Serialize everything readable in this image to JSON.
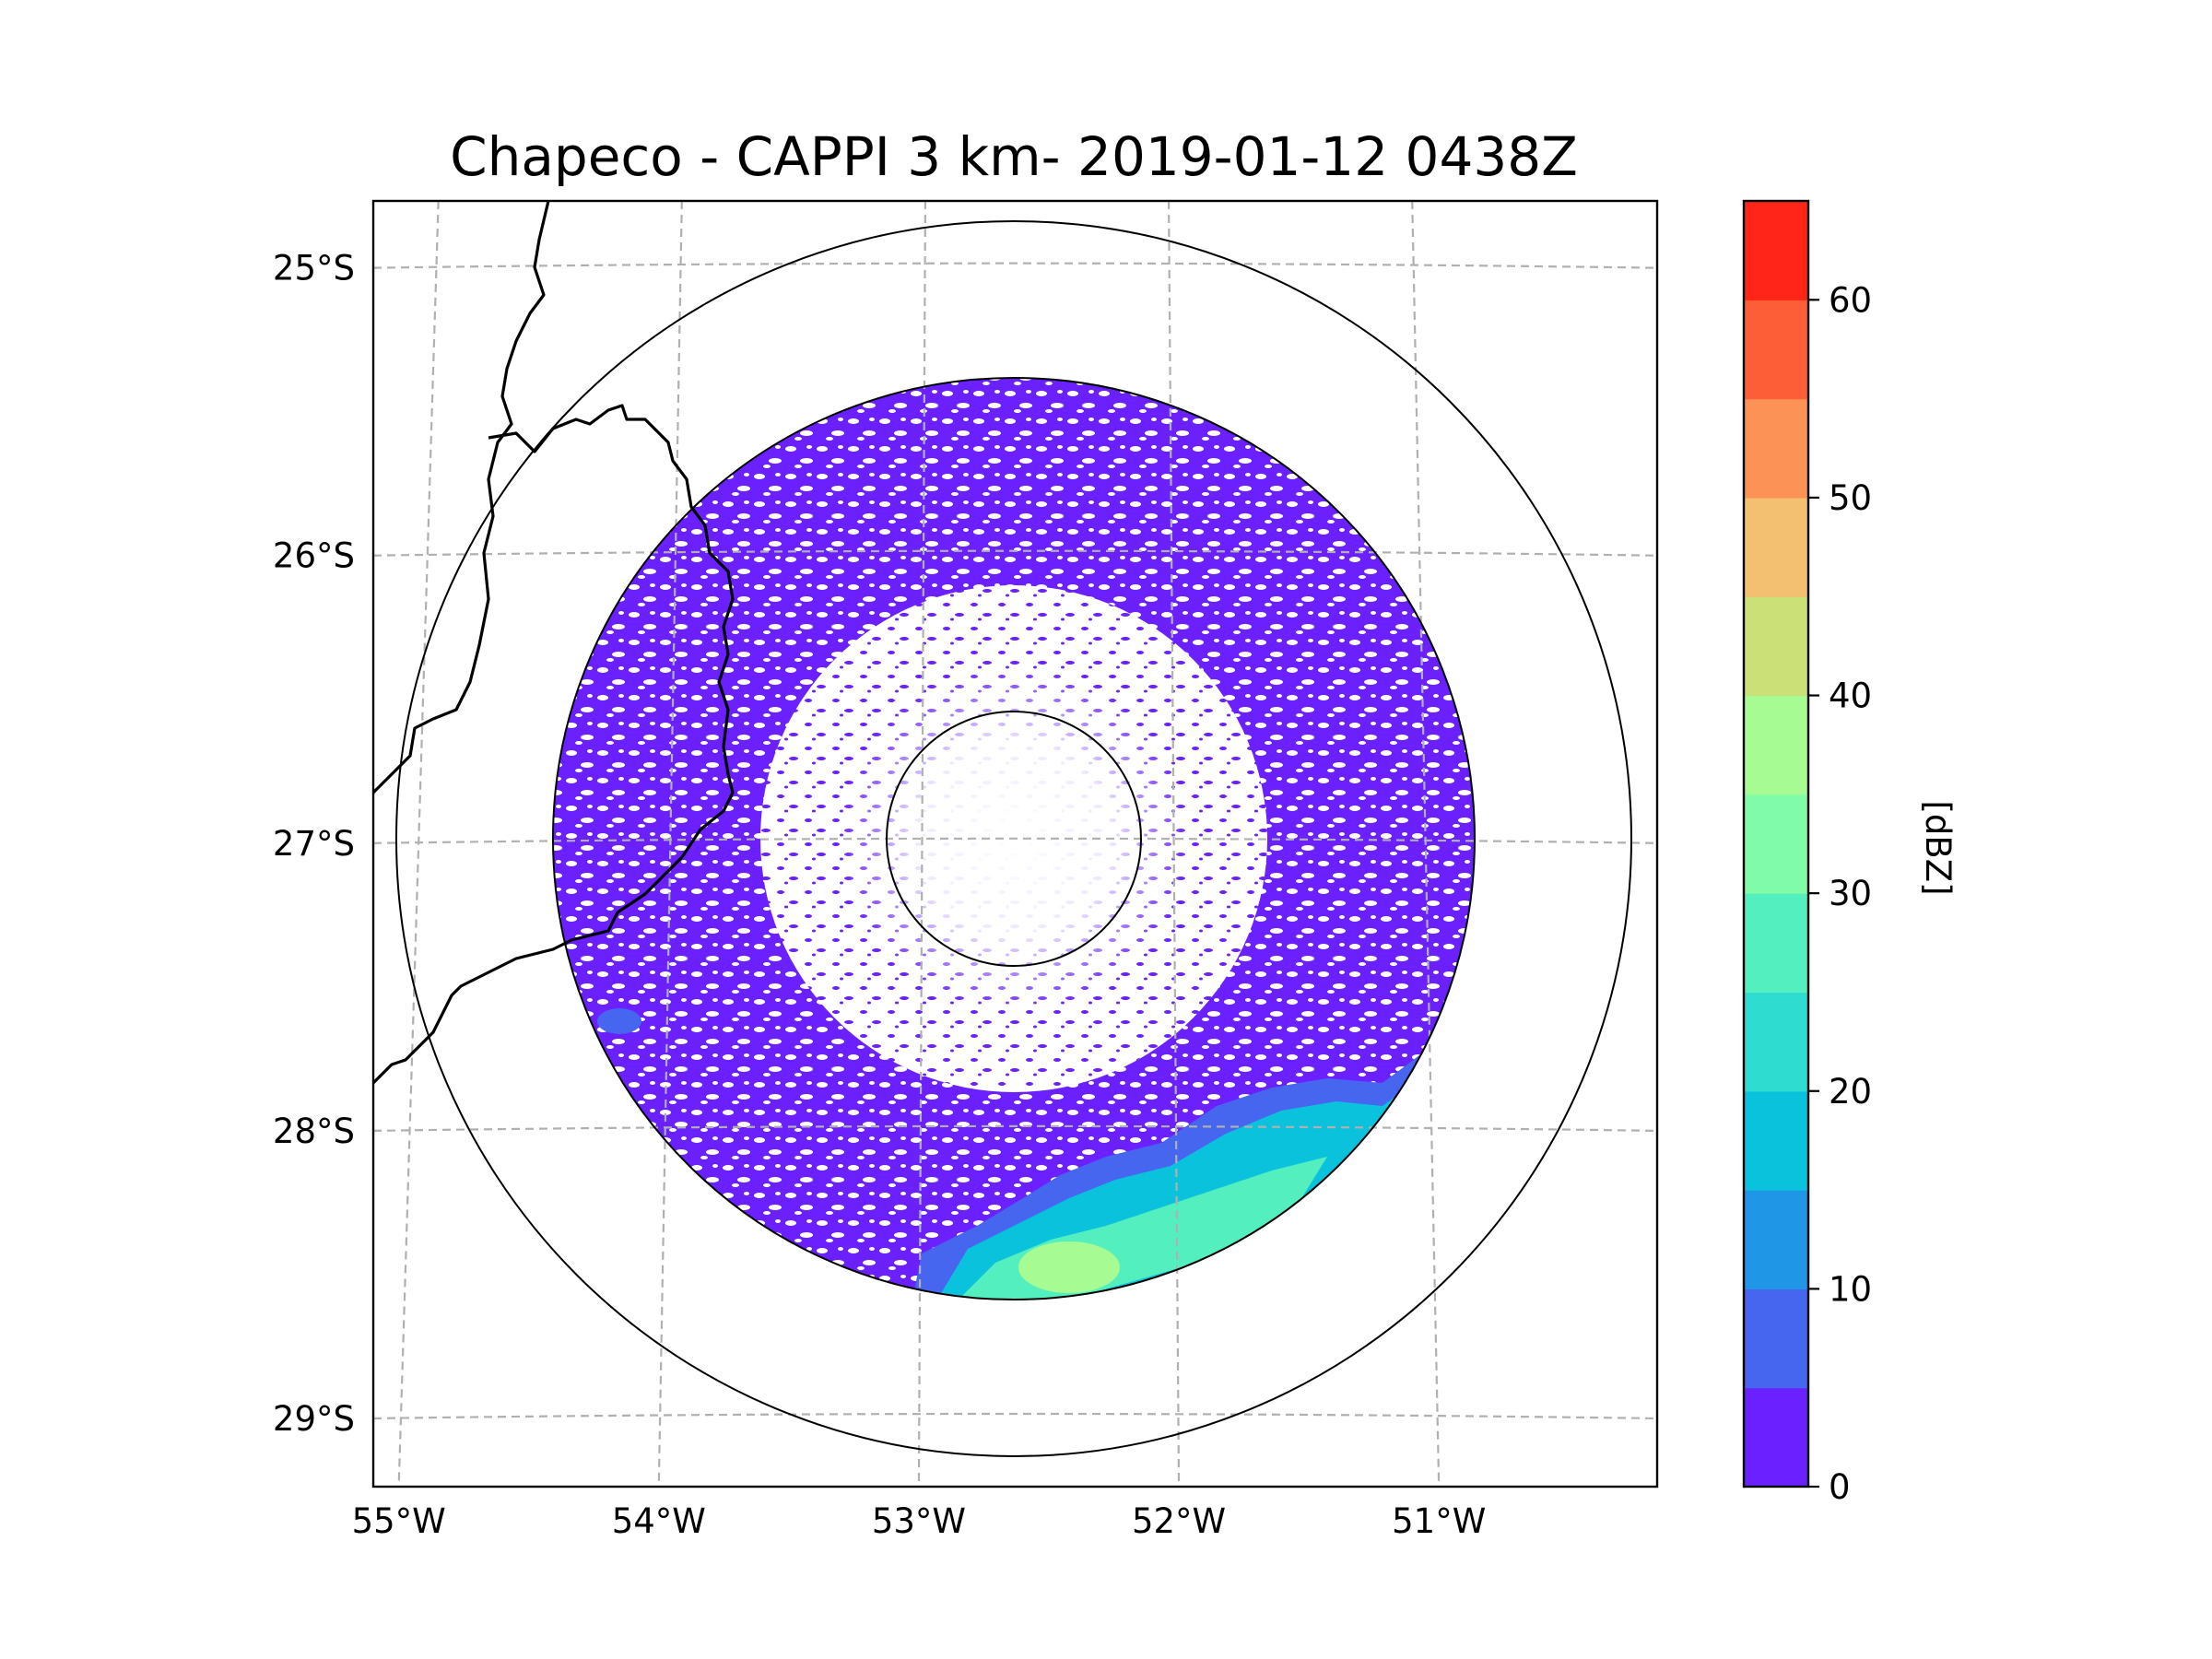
{
  "title": "Chapeco - CAPPI 3 km- 2019-01-12 0438Z",
  "map": {
    "lon_range": [
      -55.18,
      -50.08
    ],
    "lat_range": [
      -29.25,
      -24.78
    ],
    "radar_center": {
      "lon": -52.61,
      "lat": -27.12
    },
    "range_rings_km": [
      100,
      250,
      450
    ],
    "lon_ticks": [
      {
        "value": -55,
        "label": "55°W"
      },
      {
        "value": -54,
        "label": "54°W"
      },
      {
        "value": -53,
        "label": "53°W"
      },
      {
        "value": -52,
        "label": "52°W"
      },
      {
        "value": -51,
        "label": "51°W"
      }
    ],
    "lat_ticks": [
      {
        "value": -25,
        "label": "25°S"
      },
      {
        "value": -26,
        "label": "26°S"
      },
      {
        "value": -27,
        "label": "27°S"
      },
      {
        "value": -28,
        "label": "28°S"
      },
      {
        "value": -29,
        "label": "29°S"
      }
    ],
    "gridlines": true
  },
  "colorbar": {
    "label": "[dBZ]",
    "min": 0,
    "max": 65,
    "step": 5,
    "ticks": [
      {
        "value": 0,
        "label": "0"
      },
      {
        "value": 10,
        "label": "10"
      },
      {
        "value": 20,
        "label": "20"
      },
      {
        "value": 30,
        "label": "30"
      },
      {
        "value": 40,
        "label": "40"
      },
      {
        "value": 50,
        "label": "50"
      },
      {
        "value": 60,
        "label": "60"
      }
    ],
    "colors": [
      "#6a20ff",
      "#4666f0",
      "#1f96e6",
      "#0ac2dc",
      "#2edcd0",
      "#54efbe",
      "#80fbaa",
      "#a6fb92",
      "#cce078",
      "#f2c070",
      "#fc9255",
      "#fd5e37",
      "#ff2619"
    ]
  },
  "chart_data": {
    "type": "heatmap",
    "title": "Chapeco - CAPPI 3 km- 2019-01-12 0438Z",
    "variable": "reflectivity",
    "units": "dBZ",
    "zlim": [
      0,
      65
    ],
    "echo_regions": [
      {
        "name": "widespread light echoes",
        "range_km": [
          60,
          250
        ],
        "dbz": [
          0,
          5
        ]
      },
      {
        "name": "southern precipitation band",
        "lon": [
          -52.9,
          -51.2
        ],
        "lat": [
          -28.7,
          -27.8
        ],
        "dbz": [
          5,
          40
        ]
      },
      {
        "name": "western small cell",
        "lon": -54.2,
        "lat": -27.65,
        "dbz": [
          5,
          10
        ]
      }
    ]
  }
}
